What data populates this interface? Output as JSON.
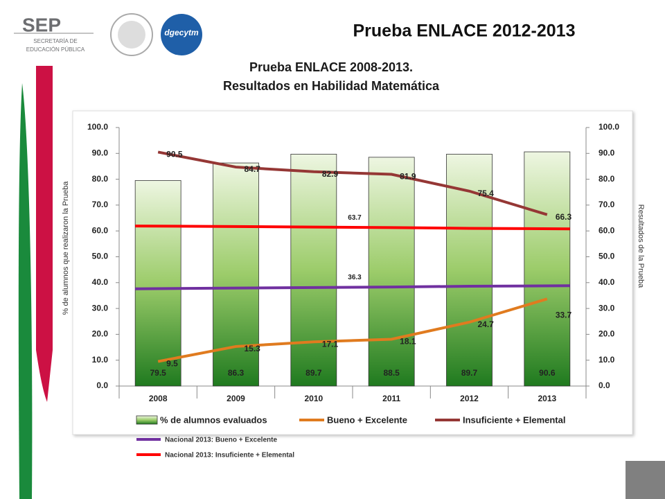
{
  "header": {
    "logo": "SEP",
    "logo_subtitle_1": "SECRETARÍA DE",
    "logo_subtitle_2": "EDUCACIÓN PÚBLICA",
    "logo_2": "dgecytm",
    "title": "Prueba ENLACE 2012-2013"
  },
  "chart_data": {
    "type": "bar",
    "title": "Prueba ENLACE 2008-2013.",
    "subtitle": "Resultados en Habilidad Matemática",
    "y_label": "% de alumnos que realizaron la Prueba",
    "y2_label": "Resultados de la Prueba",
    "categories": [
      "2008",
      "2009",
      "2010",
      "2011",
      "2012",
      "2013"
    ],
    "ylim": [
      0,
      100
    ],
    "yticks": [
      {
        "value": 0,
        "label": "0.0"
      },
      {
        "value": 10,
        "label": "10.0"
      },
      {
        "value": 20,
        "label": "20.0"
      },
      {
        "value": 30,
        "label": "30.0"
      },
      {
        "value": 40,
        "label": "40.0"
      },
      {
        "value": 50,
        "label": "50.0"
      },
      {
        "value": 60,
        "label": "60.0"
      },
      {
        "value": 70,
        "label": "70.0"
      },
      {
        "value": 80,
        "label": "80.0"
      },
      {
        "value": 90,
        "label": "90.0"
      },
      {
        "value": 100,
        "label": "100.0"
      }
    ],
    "y2lim": [
      0,
      100
    ],
    "y2ticks": [
      {
        "value": 0,
        "label": "0.0"
      },
      {
        "value": 10,
        "label": "10.0"
      },
      {
        "value": 20,
        "label": "20.0"
      },
      {
        "value": 30,
        "label": "30.0"
      },
      {
        "value": 40,
        "label": "40.0"
      },
      {
        "value": 50,
        "label": "50.0"
      },
      {
        "value": 60,
        "label": "60.0"
      },
      {
        "value": 70,
        "label": "70.0"
      },
      {
        "value": 80,
        "label": "80.0"
      },
      {
        "value": 90,
        "label": "90.0"
      },
      {
        "value": 100,
        "label": "100.0"
      }
    ],
    "series": [
      {
        "name": "% de alumnos evaluados",
        "type": "bar",
        "color": "#2e8b2e",
        "values": [
          79.5,
          86.3,
          89.7,
          88.5,
          89.7,
          90.6
        ]
      },
      {
        "name": "Bueno + Excelente",
        "type": "line",
        "axis": "y2",
        "color": "#e07b1f",
        "values": [
          9.5,
          15.3,
          17.1,
          18.1,
          24.7,
          33.7
        ]
      },
      {
        "name": "Insuficiente + Elemental",
        "type": "line",
        "axis": "y2",
        "color": "#953735",
        "values": [
          90.5,
          84.7,
          82.9,
          81.9,
          75.4,
          66.3
        ]
      }
    ],
    "reference_series": [
      {
        "name": "Nacional 2013: Bueno + Excelente",
        "color": "#7030a0",
        "values": [
          37.6,
          37.9,
          38.1,
          38.3,
          38.6,
          38.8
        ],
        "label": "36.3"
      },
      {
        "name": "Nacional 2013: Insuficiente + Elemental",
        "color": "#ff0000",
        "values": [
          61.9,
          61.7,
          61.5,
          61.3,
          61.0,
          60.8
        ],
        "label": "63.7"
      }
    ],
    "grid": false
  }
}
